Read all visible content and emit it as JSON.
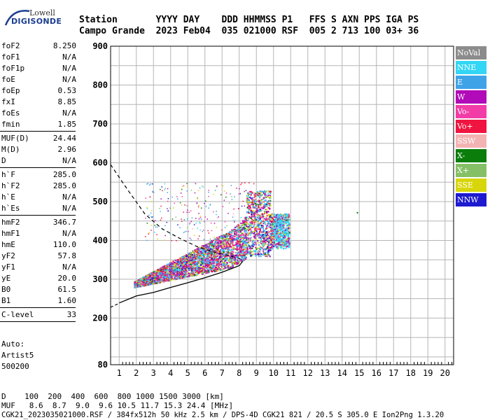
{
  "logo": {
    "top": "Lowell",
    "bottom": "DIGISONDE"
  },
  "header": {
    "row1": "Station       YYYY DAY    DDD HHMMSS P1   FFS S AXN PPS IGA PS",
    "row2": "Campo Grande  2023 Feb04  035 021000 RSF  005 2 713 100 03+ 36"
  },
  "params": [
    {
      "k": "foF2",
      "v": "8.250",
      "sep_after": false
    },
    {
      "k": "foF1",
      "v": "N/A",
      "sep_after": false
    },
    {
      "k": "foF1p",
      "v": "N/A",
      "sep_after": false
    },
    {
      "k": "foE",
      "v": "N/A",
      "sep_after": false
    },
    {
      "k": "foEp",
      "v": "0.53",
      "sep_after": false
    },
    {
      "k": "fxI",
      "v": "8.85",
      "sep_after": false
    },
    {
      "k": "foEs",
      "v": "N/A",
      "sep_after": false
    },
    {
      "k": "fmin",
      "v": "1.85",
      "sep_after": true
    },
    {
      "k": "MUF(D)",
      "v": "24.44",
      "sep_after": false
    },
    {
      "k": "M(D)",
      "v": "2.96",
      "sep_after": false
    },
    {
      "k": "D",
      "v": "N/A",
      "sep_after": true
    },
    {
      "k": "h`F",
      "v": "285.0",
      "sep_after": false
    },
    {
      "k": "h`F2",
      "v": "285.0",
      "sep_after": false
    },
    {
      "k": "h`E",
      "v": "N/A",
      "sep_after": false
    },
    {
      "k": "h`Es",
      "v": "N/A",
      "sep_after": true
    },
    {
      "k": "hmF2",
      "v": "346.7",
      "sep_after": false
    },
    {
      "k": "hmF1",
      "v": "N/A",
      "sep_after": false
    },
    {
      "k": "hmE",
      "v": "110.0",
      "sep_after": false
    },
    {
      "k": "yF2",
      "v": "57.8",
      "sep_after": false
    },
    {
      "k": "yF1",
      "v": "N/A",
      "sep_after": false
    },
    {
      "k": "yE",
      "v": "20.0",
      "sep_after": false
    },
    {
      "k": "B0",
      "v": "61.5",
      "sep_after": false
    },
    {
      "k": "B1",
      "v": "1.60",
      "sep_after": true
    },
    {
      "k": "C-level",
      "v": "33",
      "sep_after": true
    }
  ],
  "auto": {
    "line1": "Auto:",
    "line2": "Artist5",
    "line3": "500200"
  },
  "legend": [
    {
      "label": "NoVal",
      "color": "#8c8c8c"
    },
    {
      "label": "NNE",
      "color": "#33d6f5"
    },
    {
      "label": "E",
      "color": "#3fa3e8"
    },
    {
      "label": "W",
      "color": "#b10ab8"
    },
    {
      "label": "Vo-",
      "color": "#f23ca8"
    },
    {
      "label": "Vo+",
      "color": "#f01440"
    },
    {
      "label": "SSW",
      "color": "#f4b3b3"
    },
    {
      "label": "X-",
      "color": "#0b7d0b"
    },
    {
      "label": "X+",
      "color": "#86c066"
    },
    {
      "label": "SSE",
      "color": "#d8d60a"
    },
    {
      "label": "NNW",
      "color": "#1d1ad0"
    }
  ],
  "chart_data": {
    "type": "scatter",
    "xlabel": "",
    "ylabel": "",
    "x_ticks": [
      1,
      2,
      3,
      4,
      5,
      6,
      7,
      8,
      9,
      10,
      11,
      12,
      13,
      14,
      15,
      16,
      17,
      18,
      19,
      20
    ],
    "y_ticks": [
      80,
      200,
      300,
      400,
      500,
      600,
      700,
      800,
      900
    ],
    "xlim": [
      0.5,
      20.5
    ],
    "ylim": [
      80,
      900
    ],
    "grid": true,
    "legend_position": "right",
    "solid_trace": [
      [
        1,
        239
      ],
      [
        2,
        257
      ],
      [
        3,
        266
      ],
      [
        4,
        279
      ],
      [
        5,
        291
      ],
      [
        6,
        304
      ],
      [
        7,
        318
      ],
      [
        8,
        335
      ],
      [
        8.2,
        346
      ]
    ],
    "dashed_trace": [
      [
        0.5,
        595
      ],
      [
        1.5,
        530
      ],
      [
        2.5,
        468
      ],
      [
        3.5,
        430
      ],
      [
        4.5,
        406
      ],
      [
        5.5,
        385
      ],
      [
        6.5,
        370
      ],
      [
        7.5,
        360
      ],
      [
        8.25,
        350
      ]
    ],
    "dashed_trace_lower": [
      [
        0.5,
        228
      ],
      [
        1,
        238
      ]
    ],
    "isolated_point": [
      14.85,
      473
    ]
  },
  "footer": {
    "line1": "D    100  200  400  600  800 1000 1500 3000 [km]",
    "line2": "MUF   8.6  8.7  9.0  9.6 10.5 11.7 15.3 24.4 [MHz]",
    "line3": "CGK21_2023035021000.RSF / 384fx512h 50 kHz 2.5 km / DPS-4D CGK21 821 / 20.5 S 305.0 E Ion2Png 1.3.20"
  }
}
